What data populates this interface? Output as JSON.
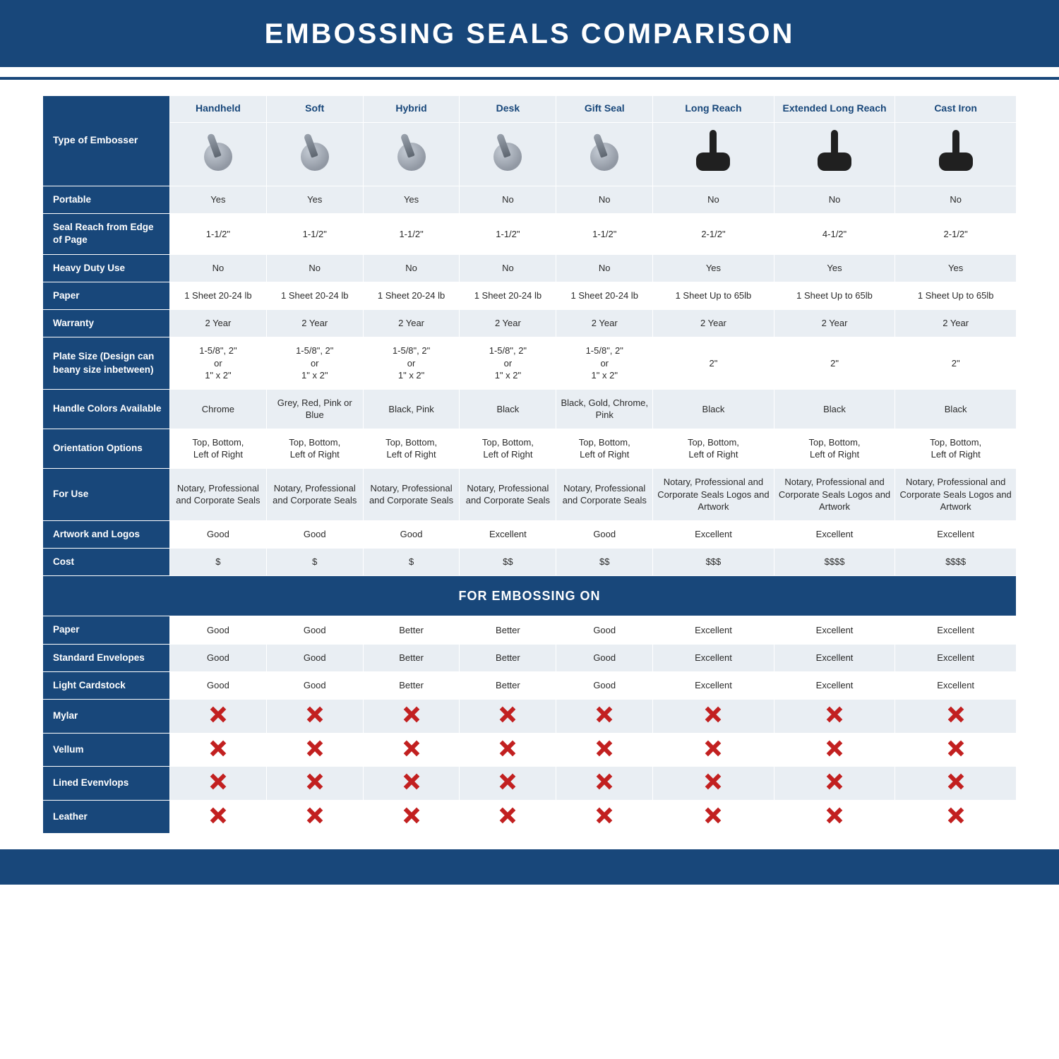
{
  "title": "EMBOSSING SEALS COMPARISON",
  "colors": {
    "band": "#18477a",
    "band_text": "#ffffff",
    "alt_row": "#e9eef3",
    "row": "#ffffff",
    "text": "#2b2b2b",
    "x_red": "#c22020"
  },
  "typography": {
    "title_fontsize": 40,
    "title_weight": 700,
    "cell_fontsize": 13,
    "header_fontsize": 14,
    "section_fontsize": 18
  },
  "columns": [
    "Handheld",
    "Soft",
    "Hybrid",
    "Desk",
    "Gift Seal",
    "Long Reach",
    "Extended Long Reach",
    "Cast Iron"
  ],
  "row_header_title": "Type of Embosser",
  "icon_hints": {
    "Handheld": "chrome",
    "Soft": "multi",
    "Hybrid": "pink-black",
    "Desk": "black",
    "Gift Seal": "gold-chrome",
    "Long Reach": "large-black",
    "Extended Long Reach": "large-black-disc",
    "Cast Iron": "large-black"
  },
  "rows": [
    {
      "label": "Portable",
      "cells": [
        "Yes",
        "Yes",
        "Yes",
        "No",
        "No",
        "No",
        "No",
        "No"
      ]
    },
    {
      "label": "Seal Reach from Edge of Page",
      "cells": [
        "1-1/2\"",
        "1-1/2\"",
        "1-1/2\"",
        "1-1/2\"",
        "1-1/2\"",
        "2-1/2\"",
        "4-1/2\"",
        "2-1/2\""
      ]
    },
    {
      "label": "Heavy Duty Use",
      "cells": [
        "No",
        "No",
        "No",
        "No",
        "No",
        "Yes",
        "Yes",
        "Yes"
      ]
    },
    {
      "label": "Paper",
      "cells": [
        "1 Sheet 20-24 lb",
        "1 Sheet 20-24 lb",
        "1 Sheet 20-24 lb",
        "1 Sheet 20-24 lb",
        "1 Sheet 20-24 lb",
        "1 Sheet Up to 65lb",
        "1 Sheet Up to 65lb",
        "1 Sheet Up to 65lb"
      ]
    },
    {
      "label": "Warranty",
      "cells": [
        "2 Year",
        "2 Year",
        "2 Year",
        "2 Year",
        "2 Year",
        "2 Year",
        "2 Year",
        "2 Year"
      ]
    },
    {
      "label": "Plate Size (Design can beany size inbetween)",
      "cells": [
        "1-5/8\", 2\"\nor\n1\" x 2\"",
        "1-5/8\", 2\"\nor\n1\" x 2\"",
        "1-5/8\", 2\"\nor\n1\" x 2\"",
        "1-5/8\", 2\"\nor\n1\" x 2\"",
        "1-5/8\", 2\"\nor\n1\" x 2\"",
        "2\"",
        "2\"",
        "2\""
      ]
    },
    {
      "label": "Handle Colors Available",
      "cells": [
        "Chrome",
        "Grey, Red, Pink or Blue",
        "Black, Pink",
        "Black",
        "Black, Gold, Chrome, Pink",
        "Black",
        "Black",
        "Black"
      ]
    },
    {
      "label": "Orientation Options",
      "cells": [
        "Top, Bottom,\nLeft of Right",
        "Top, Bottom,\nLeft of Right",
        "Top, Bottom,\nLeft of Right",
        "Top, Bottom,\nLeft of Right",
        "Top, Bottom,\nLeft of Right",
        "Top, Bottom,\nLeft of Right",
        "Top, Bottom,\nLeft of Right",
        "Top, Bottom,\nLeft of Right"
      ]
    },
    {
      "label": "For Use",
      "cells": [
        "Notary, Professional and Corporate Seals",
        "Notary, Professional and Corporate Seals",
        "Notary, Professional and Corporate Seals",
        "Notary, Professional and Corporate Seals",
        "Notary, Professional and Corporate Seals",
        "Notary, Professional and Corporate Seals Logos and Artwork",
        "Notary, Professional and Corporate Seals Logos and Artwork",
        "Notary, Professional and Corporate Seals Logos and Artwork"
      ]
    },
    {
      "label": "Artwork and Logos",
      "cells": [
        "Good",
        "Good",
        "Good",
        "Excellent",
        "Good",
        "Excellent",
        "Excellent",
        "Excellent"
      ]
    },
    {
      "label": "Cost",
      "cells": [
        "$",
        "$",
        "$",
        "$$",
        "$$",
        "$$$",
        "$$$$",
        "$$$$"
      ]
    }
  ],
  "section_label": "FOR EMBOSSING ON",
  "rows2": [
    {
      "label": "Paper",
      "cells": [
        "Good",
        "Good",
        "Better",
        "Better",
        "Good",
        "Excellent",
        "Excellent",
        "Excellent"
      ]
    },
    {
      "label": "Standard Envelopes",
      "cells": [
        "Good",
        "Good",
        "Better",
        "Better",
        "Good",
        "Excellent",
        "Excellent",
        "Excellent"
      ]
    },
    {
      "label": "Light Cardstock",
      "cells": [
        "Good",
        "Good",
        "Better",
        "Better",
        "Good",
        "Excellent",
        "Excellent",
        "Excellent"
      ]
    },
    {
      "label": "Mylar",
      "cells": [
        "X",
        "X",
        "X",
        "X",
        "X",
        "X",
        "X",
        "X"
      ]
    },
    {
      "label": "Vellum",
      "cells": [
        "X",
        "X",
        "X",
        "X",
        "X",
        "X",
        "X",
        "X"
      ]
    },
    {
      "label": "Lined Evenvlops",
      "cells": [
        "X",
        "X",
        "X",
        "X",
        "X",
        "X",
        "X",
        "X"
      ]
    },
    {
      "label": "Leather",
      "cells": [
        "X",
        "X",
        "X",
        "X",
        "X",
        "X",
        "X",
        "X"
      ]
    }
  ]
}
